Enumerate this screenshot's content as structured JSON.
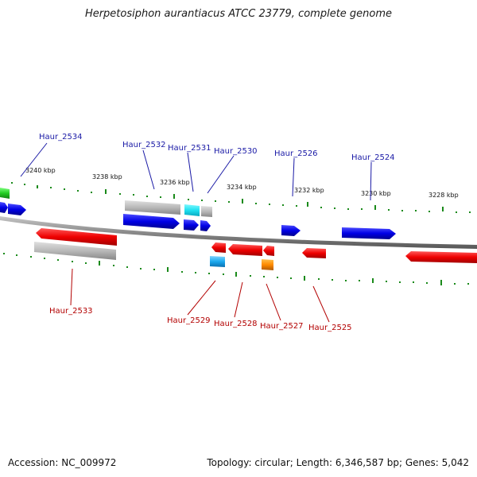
{
  "title": "Herpetosiphon aurantiacus ATCC 23779, complete genome",
  "footer": {
    "accession": "Accession: NC_009972",
    "summary": "Topology: circular; Length: 6,346,587 bp; Genes: 5,042"
  },
  "colors": {
    "forward_label": "#1a1aa6",
    "reverse_label": "#b30000",
    "tick": "#1a8a1a",
    "backbone": "#808080"
  },
  "scale_labels": [
    "3240 kbp",
    "3238 kbp",
    "3236 kbp",
    "3234 kbp",
    "3232 kbp",
    "3230 kbp",
    "3228 kbp"
  ],
  "forward_gene_labels": [
    "Haur_2534",
    "Haur_2532",
    "Haur_2531",
    "Haur_2530",
    "Haur_2526",
    "Haur_2524"
  ],
  "reverse_gene_labels": [
    "Haur_2533",
    "Haur_2529",
    "Haur_2528",
    "Haur_2527",
    "Haur_2525"
  ]
}
